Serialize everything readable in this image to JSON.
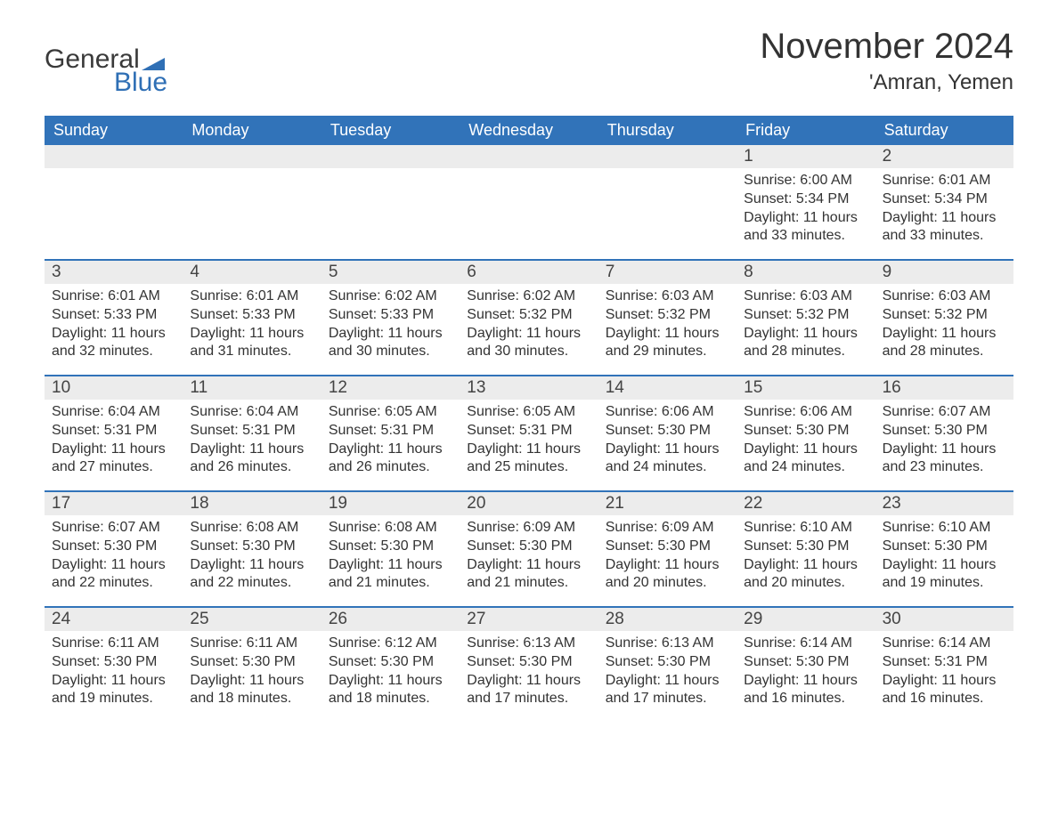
{
  "logo": {
    "text1": "General",
    "text2": "Blue",
    "flag_color": "#2f6fb5"
  },
  "title": "November 2024",
  "location": "'Amran, Yemen",
  "colors": {
    "header_bg": "#3173b9",
    "header_text": "#ffffff",
    "daynum_bg": "#ececec",
    "week_divider": "#3173b9",
    "body_text": "#333333",
    "background": "#ffffff"
  },
  "typography": {
    "title_fontsize": 40,
    "location_fontsize": 24,
    "dayname_fontsize": 18,
    "daynum_fontsize": 19,
    "body_fontsize": 16,
    "logo_fontsize": 30
  },
  "day_names": [
    "Sunday",
    "Monday",
    "Tuesday",
    "Wednesday",
    "Thursday",
    "Friday",
    "Saturday"
  ],
  "weeks": [
    [
      {
        "empty": true
      },
      {
        "empty": true
      },
      {
        "empty": true
      },
      {
        "empty": true
      },
      {
        "empty": true
      },
      {
        "day": "1",
        "sunrise": "Sunrise: 6:00 AM",
        "sunset": "Sunset: 5:34 PM",
        "daylight1": "Daylight: 11 hours",
        "daylight2": "and 33 minutes."
      },
      {
        "day": "2",
        "sunrise": "Sunrise: 6:01 AM",
        "sunset": "Sunset: 5:34 PM",
        "daylight1": "Daylight: 11 hours",
        "daylight2": "and 33 minutes."
      }
    ],
    [
      {
        "day": "3",
        "sunrise": "Sunrise: 6:01 AM",
        "sunset": "Sunset: 5:33 PM",
        "daylight1": "Daylight: 11 hours",
        "daylight2": "and 32 minutes."
      },
      {
        "day": "4",
        "sunrise": "Sunrise: 6:01 AM",
        "sunset": "Sunset: 5:33 PM",
        "daylight1": "Daylight: 11 hours",
        "daylight2": "and 31 minutes."
      },
      {
        "day": "5",
        "sunrise": "Sunrise: 6:02 AM",
        "sunset": "Sunset: 5:33 PM",
        "daylight1": "Daylight: 11 hours",
        "daylight2": "and 30 minutes."
      },
      {
        "day": "6",
        "sunrise": "Sunrise: 6:02 AM",
        "sunset": "Sunset: 5:32 PM",
        "daylight1": "Daylight: 11 hours",
        "daylight2": "and 30 minutes."
      },
      {
        "day": "7",
        "sunrise": "Sunrise: 6:03 AM",
        "sunset": "Sunset: 5:32 PM",
        "daylight1": "Daylight: 11 hours",
        "daylight2": "and 29 minutes."
      },
      {
        "day": "8",
        "sunrise": "Sunrise: 6:03 AM",
        "sunset": "Sunset: 5:32 PM",
        "daylight1": "Daylight: 11 hours",
        "daylight2": "and 28 minutes."
      },
      {
        "day": "9",
        "sunrise": "Sunrise: 6:03 AM",
        "sunset": "Sunset: 5:32 PM",
        "daylight1": "Daylight: 11 hours",
        "daylight2": "and 28 minutes."
      }
    ],
    [
      {
        "day": "10",
        "sunrise": "Sunrise: 6:04 AM",
        "sunset": "Sunset: 5:31 PM",
        "daylight1": "Daylight: 11 hours",
        "daylight2": "and 27 minutes."
      },
      {
        "day": "11",
        "sunrise": "Sunrise: 6:04 AM",
        "sunset": "Sunset: 5:31 PM",
        "daylight1": "Daylight: 11 hours",
        "daylight2": "and 26 minutes."
      },
      {
        "day": "12",
        "sunrise": "Sunrise: 6:05 AM",
        "sunset": "Sunset: 5:31 PM",
        "daylight1": "Daylight: 11 hours",
        "daylight2": "and 26 minutes."
      },
      {
        "day": "13",
        "sunrise": "Sunrise: 6:05 AM",
        "sunset": "Sunset: 5:31 PM",
        "daylight1": "Daylight: 11 hours",
        "daylight2": "and 25 minutes."
      },
      {
        "day": "14",
        "sunrise": "Sunrise: 6:06 AM",
        "sunset": "Sunset: 5:30 PM",
        "daylight1": "Daylight: 11 hours",
        "daylight2": "and 24 minutes."
      },
      {
        "day": "15",
        "sunrise": "Sunrise: 6:06 AM",
        "sunset": "Sunset: 5:30 PM",
        "daylight1": "Daylight: 11 hours",
        "daylight2": "and 24 minutes."
      },
      {
        "day": "16",
        "sunrise": "Sunrise: 6:07 AM",
        "sunset": "Sunset: 5:30 PM",
        "daylight1": "Daylight: 11 hours",
        "daylight2": "and 23 minutes."
      }
    ],
    [
      {
        "day": "17",
        "sunrise": "Sunrise: 6:07 AM",
        "sunset": "Sunset: 5:30 PM",
        "daylight1": "Daylight: 11 hours",
        "daylight2": "and 22 minutes."
      },
      {
        "day": "18",
        "sunrise": "Sunrise: 6:08 AM",
        "sunset": "Sunset: 5:30 PM",
        "daylight1": "Daylight: 11 hours",
        "daylight2": "and 22 minutes."
      },
      {
        "day": "19",
        "sunrise": "Sunrise: 6:08 AM",
        "sunset": "Sunset: 5:30 PM",
        "daylight1": "Daylight: 11 hours",
        "daylight2": "and 21 minutes."
      },
      {
        "day": "20",
        "sunrise": "Sunrise: 6:09 AM",
        "sunset": "Sunset: 5:30 PM",
        "daylight1": "Daylight: 11 hours",
        "daylight2": "and 21 minutes."
      },
      {
        "day": "21",
        "sunrise": "Sunrise: 6:09 AM",
        "sunset": "Sunset: 5:30 PM",
        "daylight1": "Daylight: 11 hours",
        "daylight2": "and 20 minutes."
      },
      {
        "day": "22",
        "sunrise": "Sunrise: 6:10 AM",
        "sunset": "Sunset: 5:30 PM",
        "daylight1": "Daylight: 11 hours",
        "daylight2": "and 20 minutes."
      },
      {
        "day": "23",
        "sunrise": "Sunrise: 6:10 AM",
        "sunset": "Sunset: 5:30 PM",
        "daylight1": "Daylight: 11 hours",
        "daylight2": "and 19 minutes."
      }
    ],
    [
      {
        "day": "24",
        "sunrise": "Sunrise: 6:11 AM",
        "sunset": "Sunset: 5:30 PM",
        "daylight1": "Daylight: 11 hours",
        "daylight2": "and 19 minutes."
      },
      {
        "day": "25",
        "sunrise": "Sunrise: 6:11 AM",
        "sunset": "Sunset: 5:30 PM",
        "daylight1": "Daylight: 11 hours",
        "daylight2": "and 18 minutes."
      },
      {
        "day": "26",
        "sunrise": "Sunrise: 6:12 AM",
        "sunset": "Sunset: 5:30 PM",
        "daylight1": "Daylight: 11 hours",
        "daylight2": "and 18 minutes."
      },
      {
        "day": "27",
        "sunrise": "Sunrise: 6:13 AM",
        "sunset": "Sunset: 5:30 PM",
        "daylight1": "Daylight: 11 hours",
        "daylight2": "and 17 minutes."
      },
      {
        "day": "28",
        "sunrise": "Sunrise: 6:13 AM",
        "sunset": "Sunset: 5:30 PM",
        "daylight1": "Daylight: 11 hours",
        "daylight2": "and 17 minutes."
      },
      {
        "day": "29",
        "sunrise": "Sunrise: 6:14 AM",
        "sunset": "Sunset: 5:30 PM",
        "daylight1": "Daylight: 11 hours",
        "daylight2": "and 16 minutes."
      },
      {
        "day": "30",
        "sunrise": "Sunrise: 6:14 AM",
        "sunset": "Sunset: 5:31 PM",
        "daylight1": "Daylight: 11 hours",
        "daylight2": "and 16 minutes."
      }
    ]
  ]
}
